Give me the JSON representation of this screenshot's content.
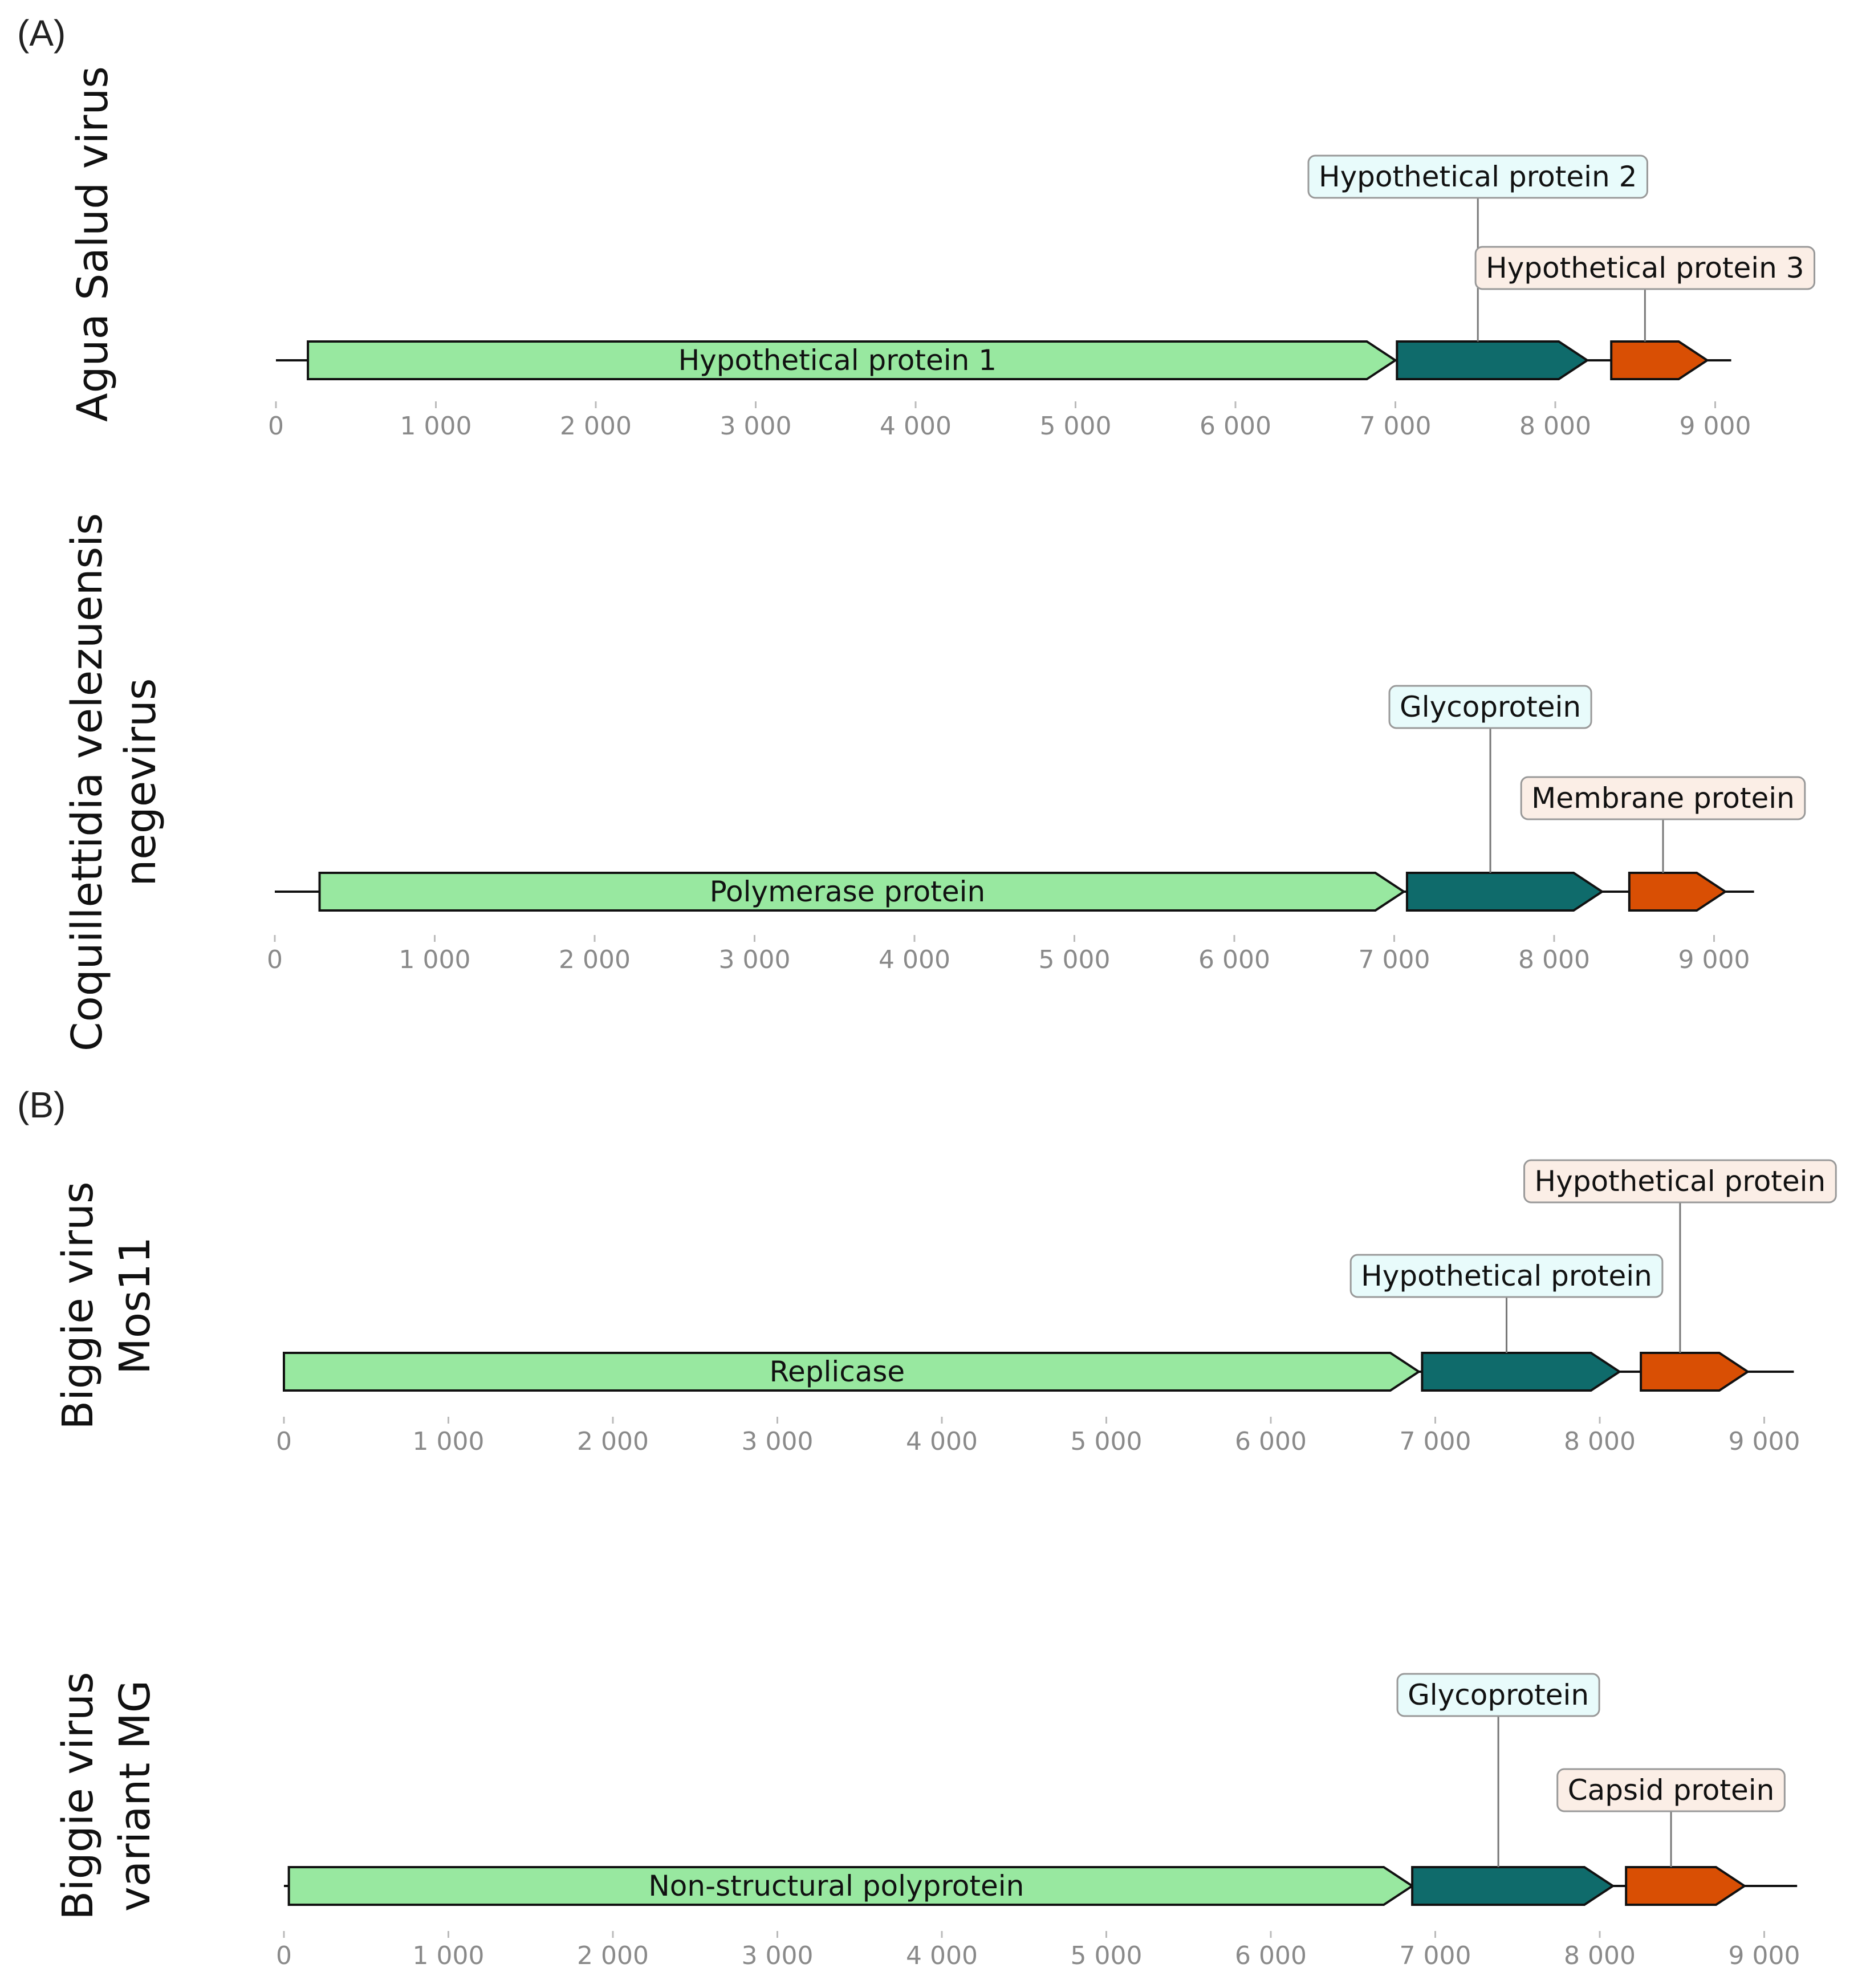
{
  "figure": {
    "panels": [
      {
        "label": "(A)"
      },
      {
        "label": "(B)"
      }
    ],
    "axis_ticks": [
      0,
      1000,
      2000,
      3000,
      4000,
      5000,
      6000,
      7000,
      8000,
      9000
    ],
    "tick_labels": [
      "0",
      "1 000",
      "2 000",
      "3 000",
      "4 000",
      "5 000",
      "6 000",
      "7 000",
      "8 000",
      "9 000"
    ],
    "colors": {
      "polyprotein": "#98e8a0",
      "glycoprotein": "#0f6b6b",
      "capsid": "#d94f04",
      "callout_teal_fill": "#e8fbfb",
      "callout_orange_fill": "#fbeee6",
      "callout_border": "#999999",
      "axis": "#bbbbbb",
      "backbone": "#111111"
    },
    "tracks": [
      {
        "name_lines": [
          "Agua Salud virus"
        ],
        "genome_end": 9100,
        "genes": [
          {
            "start": 200,
            "end": 7000,
            "color": "polyprotein",
            "label": "Hypothetical protein 1"
          },
          {
            "start": 7010,
            "end": 8200,
            "color": "glycoprotein",
            "callout": "Hypothetical protein 2",
            "callout_style": "teal"
          },
          {
            "start": 8350,
            "end": 8950,
            "color": "capsid",
            "callout": "Hypothetical protein 3",
            "callout_style": "orange"
          }
        ]
      },
      {
        "name_lines": [
          "Coquillettidia velezuensis",
          "negevirus"
        ],
        "genome_end": 9250,
        "genes": [
          {
            "start": 280,
            "end": 7060,
            "color": "polyprotein",
            "label": "Polymerase protein"
          },
          {
            "start": 7080,
            "end": 8300,
            "color": "glycoprotein",
            "callout": "Glycoprotein",
            "callout_style": "teal"
          },
          {
            "start": 8470,
            "end": 9070,
            "color": "capsid",
            "callout": "Membrane protein",
            "callout_style": "orange"
          }
        ]
      },
      {
        "name_lines": [
          "Biggie virus",
          "Mos11"
        ],
        "genome_end": 9180,
        "genes": [
          {
            "start": 0,
            "end": 6900,
            "color": "polyprotein",
            "label": "Replicase"
          },
          {
            "start": 6920,
            "end": 8120,
            "color": "glycoprotein",
            "callout": "Hypothetical protein",
            "callout_style": "teal"
          },
          {
            "start": 8250,
            "end": 8900,
            "color": "capsid",
            "callout": "Hypothetical protein",
            "callout_style": "orange"
          }
        ]
      },
      {
        "name_lines": [
          "Biggie virus",
          "variant MG"
        ],
        "genome_end": 9200,
        "genes": [
          {
            "start": 30,
            "end": 6860,
            "color": "polyprotein",
            "label": "Non-structural polyprotein"
          },
          {
            "start": 6860,
            "end": 8080,
            "color": "glycoprotein",
            "callout": "Glycoprotein",
            "callout_style": "teal"
          },
          {
            "start": 8160,
            "end": 8880,
            "color": "capsid",
            "callout": "Capsid protein",
            "callout_style": "orange"
          }
        ]
      }
    ]
  }
}
